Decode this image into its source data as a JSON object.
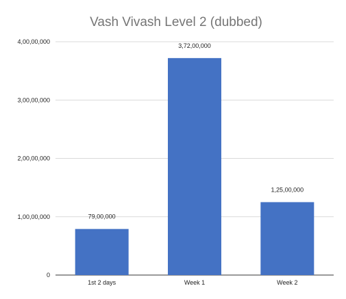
{
  "chart_data": {
    "type": "bar",
    "title": "Vash Vivash Level 2 (dubbed)",
    "xlabel": "",
    "ylabel": "",
    "categories": [
      "1st 2 days",
      "Week 1",
      "Week 2"
    ],
    "values": [
      7900000,
      37200000,
      12500000
    ],
    "data_labels": [
      "79,00,000",
      "3,72,00,000",
      "1,25,00,000"
    ],
    "ylim": [
      0,
      40000000
    ],
    "yticks": [
      0,
      10000000,
      20000000,
      30000000,
      40000000
    ],
    "ytick_labels": [
      "0",
      "1,00,00,000",
      "2,00,00,000",
      "3,00,00,000",
      "4,00,00,000"
    ],
    "grid": true,
    "legend": "none",
    "bar_color": "#4472c4",
    "grid_color": "#d9d9d9"
  }
}
